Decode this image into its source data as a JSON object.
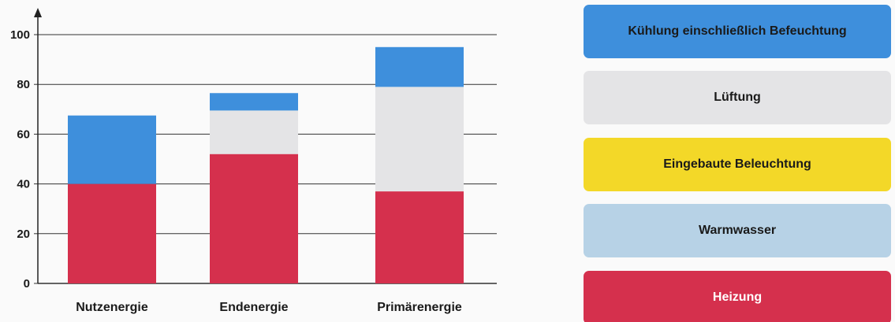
{
  "chart_data": {
    "type": "bar",
    "stacked": true,
    "categories": [
      "Nutzenergie",
      "Endenergie",
      "Primärenergie"
    ],
    "ylim": [
      0,
      100
    ],
    "yticks": [
      0,
      20,
      40,
      60,
      80,
      100
    ],
    "grid": true,
    "legend_position": "right",
    "series": [
      {
        "name": "Heizung",
        "color": "#d5304d",
        "values": [
          40,
          52,
          37
        ]
      },
      {
        "name": "Warmwasser",
        "color": "#b7d2e6",
        "values": [
          0,
          0,
          0
        ]
      },
      {
        "name": "Eingebaute Beleuchtung",
        "color": "#f3d828",
        "values": [
          0,
          0,
          0
        ]
      },
      {
        "name": "Lüftung",
        "color": "#e4e4e6",
        "values": [
          0,
          17.5,
          42
        ]
      },
      {
        "name": "Kühlung einschließlich Befeuchtung",
        "color": "#3e8fdc",
        "values": [
          27.5,
          7,
          16
        ]
      }
    ]
  },
  "legend": {
    "items": [
      {
        "label": "Kühlung einschließlich Befeuchtung",
        "color": "#3e8fdc"
      },
      {
        "label": "Lüftung",
        "color": "#e4e4e6"
      },
      {
        "label": "Eingebaute Beleuchtung",
        "color": "#f3d828"
      },
      {
        "label": "Warmwasser",
        "color": "#b7d2e6"
      },
      {
        "label": "Heizung",
        "color": "#d5304d"
      }
    ]
  }
}
